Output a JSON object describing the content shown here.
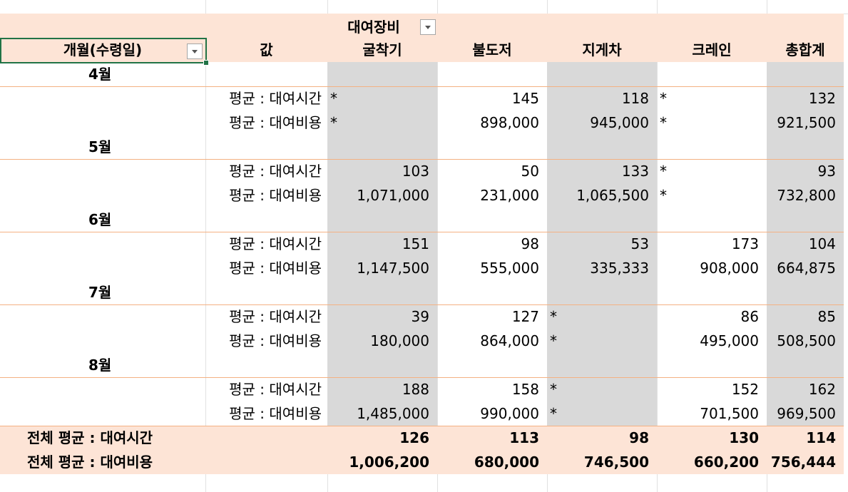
{
  "pivot": {
    "column_field": "대여장비",
    "row_field": "개월(수령일)",
    "values_header": "값",
    "columns": [
      "굴착기",
      "불도저",
      "지게차",
      "크레인",
      "총합계"
    ],
    "measures": [
      "평균 : 대여시간",
      "평균 : 대여비용"
    ],
    "months": [
      {
        "label": "4월",
        "time": [
          "*",
          "145",
          "118",
          "*",
          "132"
        ],
        "cost": [
          "*",
          "898,000",
          "945,000",
          "*",
          "921,500"
        ]
      },
      {
        "label": "5월",
        "time": [
          "103",
          "50",
          "133",
          "*",
          "93"
        ],
        "cost": [
          "1,071,000",
          "231,000",
          "1,065,500",
          "*",
          "732,800"
        ]
      },
      {
        "label": "6월",
        "time": [
          "151",
          "98",
          "53",
          "173",
          "104"
        ],
        "cost": [
          "1,147,500",
          "555,000",
          "335,333",
          "908,000",
          "664,875"
        ]
      },
      {
        "label": "7월",
        "time": [
          "39",
          "127",
          "*",
          "86",
          "85"
        ],
        "cost": [
          "180,000",
          "864,000",
          "*",
          "495,000",
          "508,500"
        ]
      },
      {
        "label": "8월",
        "time": [
          "188",
          "158",
          "*",
          "152",
          "162"
        ],
        "cost": [
          "1,485,000",
          "990,000",
          "*",
          "701,500",
          "969,500"
        ]
      }
    ],
    "totals": {
      "time_label": "전체 평균 : 대여시간",
      "cost_label": "전체 평균 : 대여비용",
      "time": [
        "126",
        "113",
        "98",
        "130",
        "114"
      ],
      "cost": [
        "1,006,200",
        "680,000",
        "746,500",
        "660,200",
        "756,444"
      ]
    }
  },
  "colors": {
    "header_fill": "#fde4d6",
    "highlight_fill": "#d9d9d9",
    "row_border": "#f4b183",
    "selection": "#217346"
  }
}
